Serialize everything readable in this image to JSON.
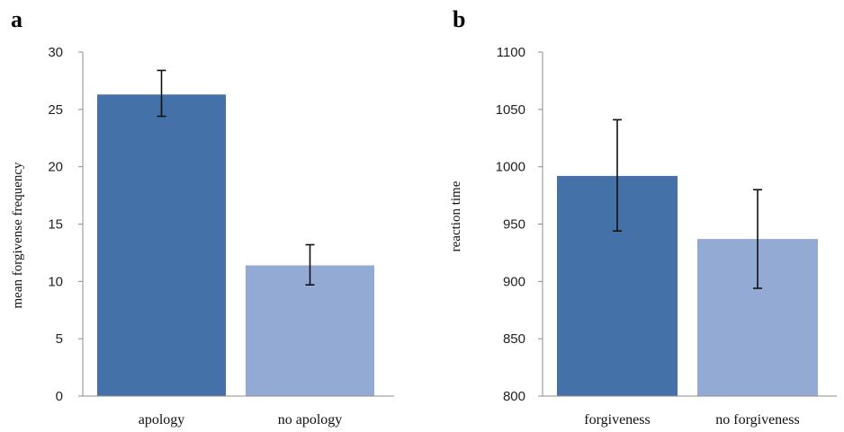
{
  "chart_data": [
    {
      "type": "bar",
      "panel_label": "a",
      "title": "",
      "xlabel": "",
      "ylabel": "mean forgivense frequency",
      "ylim": [
        0,
        30
      ],
      "yticks": [
        "0",
        "5",
        "10",
        "15",
        "20",
        "25",
        "30"
      ],
      "categories": [
        "apology",
        "no apology"
      ],
      "values": [
        26.3,
        11.4
      ],
      "error_low": [
        24.4,
        9.7
      ],
      "error_high": [
        28.4,
        13.2
      ],
      "colors": [
        "#4472a8",
        "#93aad4"
      ],
      "grid": false
    },
    {
      "type": "bar",
      "panel_label": "b",
      "title": "",
      "xlabel": "",
      "ylabel": "reaction time",
      "ylim": [
        800,
        1100
      ],
      "yticks": [
        "800",
        "850",
        "900",
        "950",
        "1000",
        "1050",
        "1100"
      ],
      "categories": [
        "forgiveness",
        "no forgiveness"
      ],
      "values": [
        992,
        937
      ],
      "error_low": [
        944,
        894
      ],
      "error_high": [
        1041,
        980
      ],
      "colors": [
        "#4472a8",
        "#93aad4"
      ],
      "grid": false
    }
  ]
}
